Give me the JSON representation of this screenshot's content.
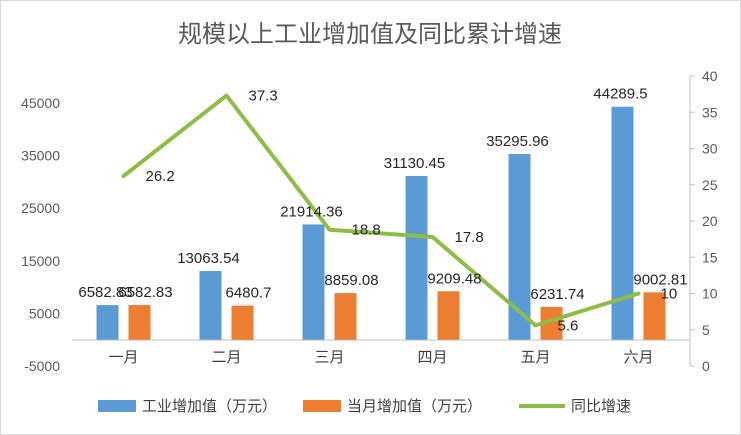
{
  "chart_data": {
    "type": "bar",
    "title": "规模以上工业增加值及同比累计增速",
    "categories": [
      "一月",
      "二月",
      "三月",
      "四月",
      "五月",
      "六月"
    ],
    "series": [
      {
        "name": "工业增加值（万元）",
        "type": "bar",
        "axis": "left",
        "color": "#5b9bd5",
        "values": [
          6582.83,
          13063.54,
          21914.36,
          31130.45,
          35295.96,
          44289.5
        ],
        "labels": [
          "6582.83",
          "13063.54",
          "21914.36",
          "31130.45",
          "35295.96",
          "44289.5"
        ]
      },
      {
        "name": "当月增加值（万元）",
        "type": "bar",
        "axis": "left",
        "color": "#ed7d31",
        "values": [
          6582.83,
          6480.7,
          8859.08,
          9209.48,
          6231.74,
          9002.81
        ],
        "labels": [
          "6582.83",
          "6480.7",
          "8859.08",
          "9209.48",
          "6231.74",
          "9002.81"
        ]
      },
      {
        "name": "同比增速",
        "type": "line",
        "axis": "right",
        "color": "#8fbc45",
        "values": [
          26.2,
          37.3,
          18.8,
          17.8,
          5.6,
          10
        ],
        "labels": [
          "26.2",
          "37.3",
          "18.8",
          "17.8",
          "5.6",
          "10"
        ]
      }
    ],
    "y_left": {
      "min": -5000,
      "max": 45000,
      "ticks": [
        "-5000",
        "5000",
        "15000",
        "25000",
        "35000",
        "45000"
      ]
    },
    "y_right": {
      "min": 0,
      "max": 40,
      "ticks": [
        "0",
        "5",
        "10",
        "15",
        "20",
        "25",
        "30",
        "35",
        "40"
      ]
    },
    "grid": false,
    "legend": "bottom"
  }
}
